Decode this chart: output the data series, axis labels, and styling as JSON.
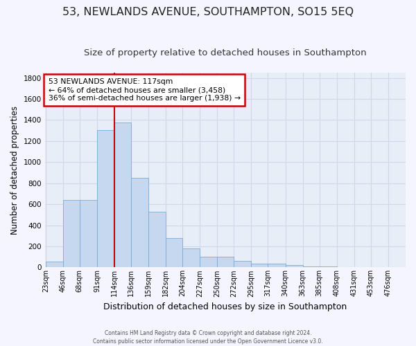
{
  "title": "53, NEWLANDS AVENUE, SOUTHAMPTON, SO15 5EQ",
  "subtitle": "Size of property relative to detached houses in Southampton",
  "xlabel": "Distribution of detached houses by size in Southampton",
  "ylabel": "Number of detached properties",
  "footer_line1": "Contains HM Land Registry data © Crown copyright and database right 2024.",
  "footer_line2": "Contains public sector information licensed under the Open Government Licence v3.0.",
  "annotation_title": "53 NEWLANDS AVENUE: 117sqm",
  "annotation_line2": "← 64% of detached houses are smaller (3,458)",
  "annotation_line3": "36% of semi-detached houses are larger (1,938) →",
  "bar_edges": [
    23,
    46,
    68,
    91,
    114,
    136,
    159,
    182,
    204,
    227,
    250,
    272,
    295,
    317,
    340,
    363,
    385,
    408,
    431,
    453,
    476
  ],
  "bar_heights": [
    55,
    638,
    638,
    1305,
    1375,
    848,
    528,
    278,
    180,
    103,
    103,
    65,
    35,
    35,
    25,
    12,
    12,
    4,
    4,
    4,
    0
  ],
  "bar_color": "#c5d8f0",
  "bar_edge_color": "#7aaad4",
  "vline_color": "#cc0000",
  "vline_x": 114,
  "annotation_box_color": "#cc0000",
  "ylim": [
    0,
    1850
  ],
  "yticks": [
    0,
    200,
    400,
    600,
    800,
    1000,
    1200,
    1400,
    1600,
    1800
  ],
  "bg_color": "#e8eef8",
  "grid_color": "#d0d8e8",
  "title_fontsize": 11.5,
  "subtitle_fontsize": 9.5,
  "xlabel_fontsize": 9,
  "ylabel_fontsize": 8.5,
  "tick_fontsize": 7,
  "ytick_fontsize": 7.5,
  "fig_bg": "#f5f5ff"
}
